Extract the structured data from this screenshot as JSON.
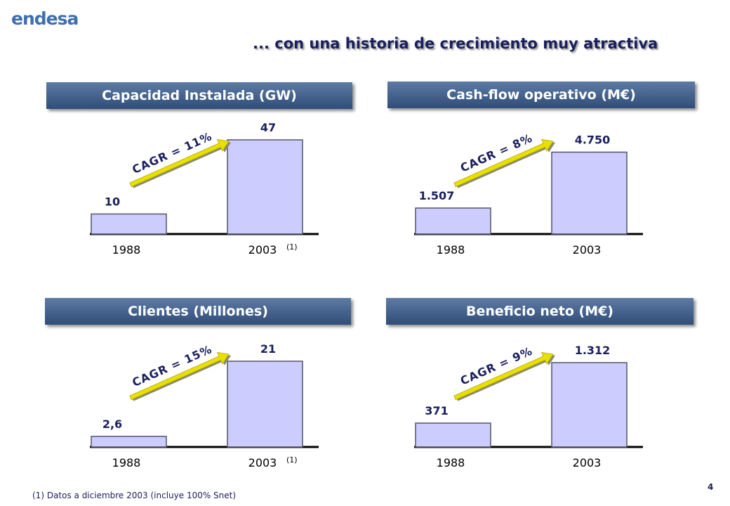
{
  "logo": "endesa",
  "subtitle": "... con una historia de crecimiento muy atractiva",
  "footnote": "(1) Datos a diciembre 2003 (incluye 100% Snet)",
  "page_number": "4",
  "colors": {
    "bar_fill": "#ccccff",
    "bar_stroke": "#555566",
    "arrow": "#e8e000",
    "navy": "#1a1f5e",
    "title_bg": "#2f4d78"
  },
  "chart_data": [
    {
      "type": "bar",
      "title": "Capacidad Instalada (GW)",
      "categories": [
        "1988",
        "2003"
      ],
      "category_notes": [
        "",
        "(1)"
      ],
      "values": [
        10,
        47
      ],
      "value_labels": [
        "10",
        "47"
      ],
      "cagr_label": "CAGR = 11%",
      "ylim": [
        0,
        47
      ]
    },
    {
      "type": "bar",
      "title": "Cash-flow operativo (M€)",
      "categories": [
        "1988",
        "2003"
      ],
      "category_notes": [
        "",
        ""
      ],
      "values": [
        1507,
        4750
      ],
      "value_labels": [
        "1.507",
        "4.750"
      ],
      "cagr_label": "CAGR = 8%",
      "ylim": [
        0,
        5300
      ]
    },
    {
      "type": "bar",
      "title": "Clientes (Millones)",
      "categories": [
        "1988",
        "2003"
      ],
      "category_notes": [
        "",
        "(1)"
      ],
      "values": [
        2.6,
        21
      ],
      "value_labels": [
        "2,6",
        "21"
      ],
      "cagr_label": "CAGR = 15%",
      "ylim": [
        0,
        21
      ]
    },
    {
      "type": "bar",
      "title": "Beneficio neto (M€)",
      "categories": [
        "1988",
        "2003"
      ],
      "category_notes": [
        "",
        ""
      ],
      "values": [
        371,
        1312
      ],
      "value_labels": [
        "371",
        "1.312"
      ],
      "cagr_label": "CAGR = 9%",
      "ylim": [
        0,
        1312
      ]
    }
  ]
}
